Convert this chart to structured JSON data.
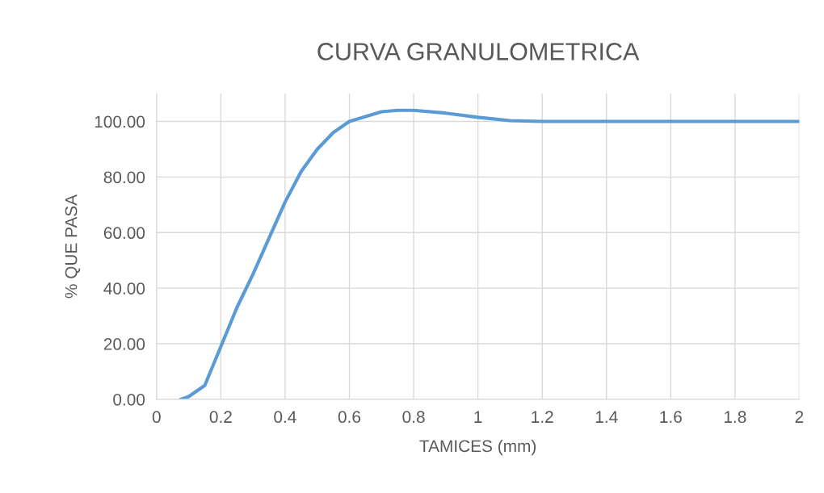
{
  "chart_data": {
    "type": "line",
    "title": "CURVA GRANULOMETRICA",
    "xlabel": "TAMICES (mm)",
    "ylabel": "% QUE PASA",
    "x": [
      0.075,
      0.1,
      0.15,
      0.2,
      0.25,
      0.3,
      0.35,
      0.4,
      0.45,
      0.5,
      0.55,
      0.6,
      0.7,
      0.75,
      0.8,
      0.9,
      1,
      1.1,
      1.2,
      1.5,
      2
    ],
    "series": [
      {
        "color": "#5b9bd5",
        "values": [
          0,
          1,
          5,
          19,
          33,
          45,
          58,
          71,
          82,
          90,
          96,
          100,
          103.5,
          104,
          104,
          103,
          101.5,
          100.3,
          100,
          100,
          100
        ]
      }
    ],
    "xlim": [
      0,
      2
    ],
    "xticks": [
      0,
      0.2,
      0.4,
      0.6,
      0.8,
      1,
      1.2,
      1.4,
      1.6,
      1.8,
      2
    ],
    "ylim": [
      0,
      110
    ],
    "yticks": [
      {
        "value": 0,
        "label": "0.00"
      },
      {
        "value": 20,
        "label": "20.00"
      },
      {
        "value": 40,
        "label": "40.00"
      },
      {
        "value": 60,
        "label": "60.00"
      },
      {
        "value": 80,
        "label": "80.00"
      },
      {
        "value": 100,
        "label": "100.00"
      }
    ],
    "grid": true,
    "marker": "none",
    "line_style": "solid",
    "legend": false
  }
}
